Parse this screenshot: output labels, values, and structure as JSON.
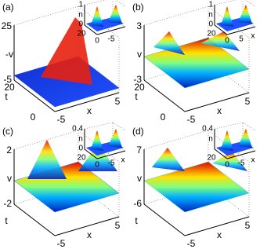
{
  "panels": [
    {
      "label": "(a)",
      "z_ticks": [
        "25",
        "-5"
      ],
      "z_label": "-v",
      "t_label": "t",
      "t_ticks": [
        "20",
        "0"
      ],
      "x_label": "x",
      "x_ticks": [
        "-5",
        "5"
      ],
      "inset": {
        "n_ticks": [
          "1",
          "0"
        ],
        "n_label": "n",
        "t_ticks": [
          "20",
          "0"
        ],
        "x_ticks": [
          "-5"
        ]
      }
    },
    {
      "label": "(b)",
      "z_ticks": [
        "3",
        "-3"
      ],
      "z_label": "v",
      "t_label": "t",
      "t_ticks": [
        "20",
        "0"
      ],
      "x_label": "x",
      "x_ticks": [
        "-5",
        "5"
      ],
      "inset": {
        "n_ticks": [
          "1",
          "0"
        ],
        "n_label": "n",
        "t_ticks": [
          "20",
          "0"
        ],
        "x_ticks": [
          "5"
        ],
        "x_label": "x"
      }
    },
    {
      "label": "(c)",
      "z_ticks": [
        "2",
        "-2"
      ],
      "z_label": "v",
      "t_label": "t",
      "x_label": "x",
      "x_ticks": [
        "-5",
        "5"
      ],
      "inset": {
        "n_ticks": [
          "0.4",
          "0"
        ],
        "n_label": "n",
        "t_ticks": [
          "20",
          "0"
        ],
        "x_ticks": [
          "-5"
        ],
        "x_label": "x"
      }
    },
    {
      "label": "(d)",
      "z_ticks": [
        "7",
        "-6"
      ],
      "z_label": "v",
      "t_label": "t",
      "x_label": "x",
      "x_ticks": [
        "-5",
        "5"
      ],
      "inset": {
        "n_ticks": [
          "0.4"
        ],
        "n_label": "n",
        "t_ticks": [
          "20",
          "0"
        ],
        "x_ticks": [
          "-5"
        ],
        "x_label": "x"
      }
    }
  ]
}
